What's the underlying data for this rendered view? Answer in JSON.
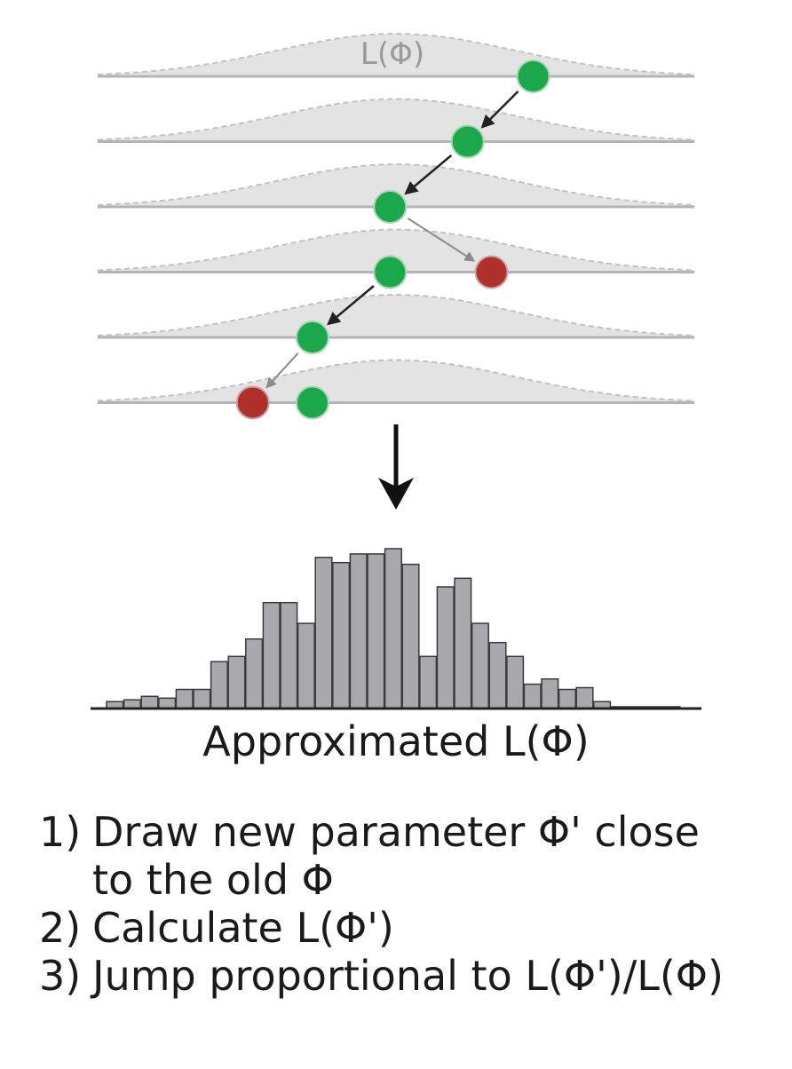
{
  "curve_label": "L(Φ)",
  "caption": "Approximated L(Φ)",
  "steps": [
    {
      "num": "1)",
      "lines": [
        "Draw new parameter Φ' close",
        "to the old Φ"
      ]
    },
    {
      "num": "2)",
      "lines": [
        "Calculate L(Φ')"
      ]
    },
    {
      "num": "3)",
      "lines": [
        "Jump proportional to L(Φ')/L(Φ)"
      ]
    }
  ],
  "colors": {
    "accepted": "#1aa84a",
    "rejected": "#b0302c",
    "curve_fill": "#e3e3e3",
    "baseline": "#b4b4b8",
    "bar_fill": "#a9a9ad",
    "bar_stroke": "#3a3a3a"
  },
  "chain": {
    "rows": [
      {
        "accepted": 0.73,
        "rejected": null
      },
      {
        "accepted": 0.62,
        "rejected": null
      },
      {
        "accepted": 0.49,
        "rejected": null
      },
      {
        "accepted": 0.49,
        "rejected": 0.66
      },
      {
        "accepted": 0.36,
        "rejected": null
      },
      {
        "accepted": 0.36,
        "rejected": 0.26
      }
    ],
    "arrows": [
      {
        "from_row": 0,
        "to_row": 1,
        "kind": "accepted"
      },
      {
        "from_row": 1,
        "to_row": 2,
        "kind": "accepted"
      },
      {
        "from_row": 2,
        "to_row": 3,
        "kind": "rejected"
      },
      {
        "from_row": 3,
        "to_row": 4,
        "kind": "accepted"
      },
      {
        "from_row": 4,
        "to_row": 5,
        "kind": "rejected"
      }
    ]
  },
  "histogram": {
    "values": [
      0.04,
      0.05,
      0.07,
      0.06,
      0.11,
      0.11,
      0.27,
      0.3,
      0.4,
      0.61,
      0.61,
      0.49,
      0.87,
      0.84,
      0.89,
      0.89,
      0.92,
      0.83,
      0.3,
      0.7,
      0.75,
      0.49,
      0.38,
      0.3,
      0.14,
      0.17,
      0.11,
      0.12,
      0.04,
      0.01,
      0.01,
      0.01,
      0.01
    ]
  }
}
